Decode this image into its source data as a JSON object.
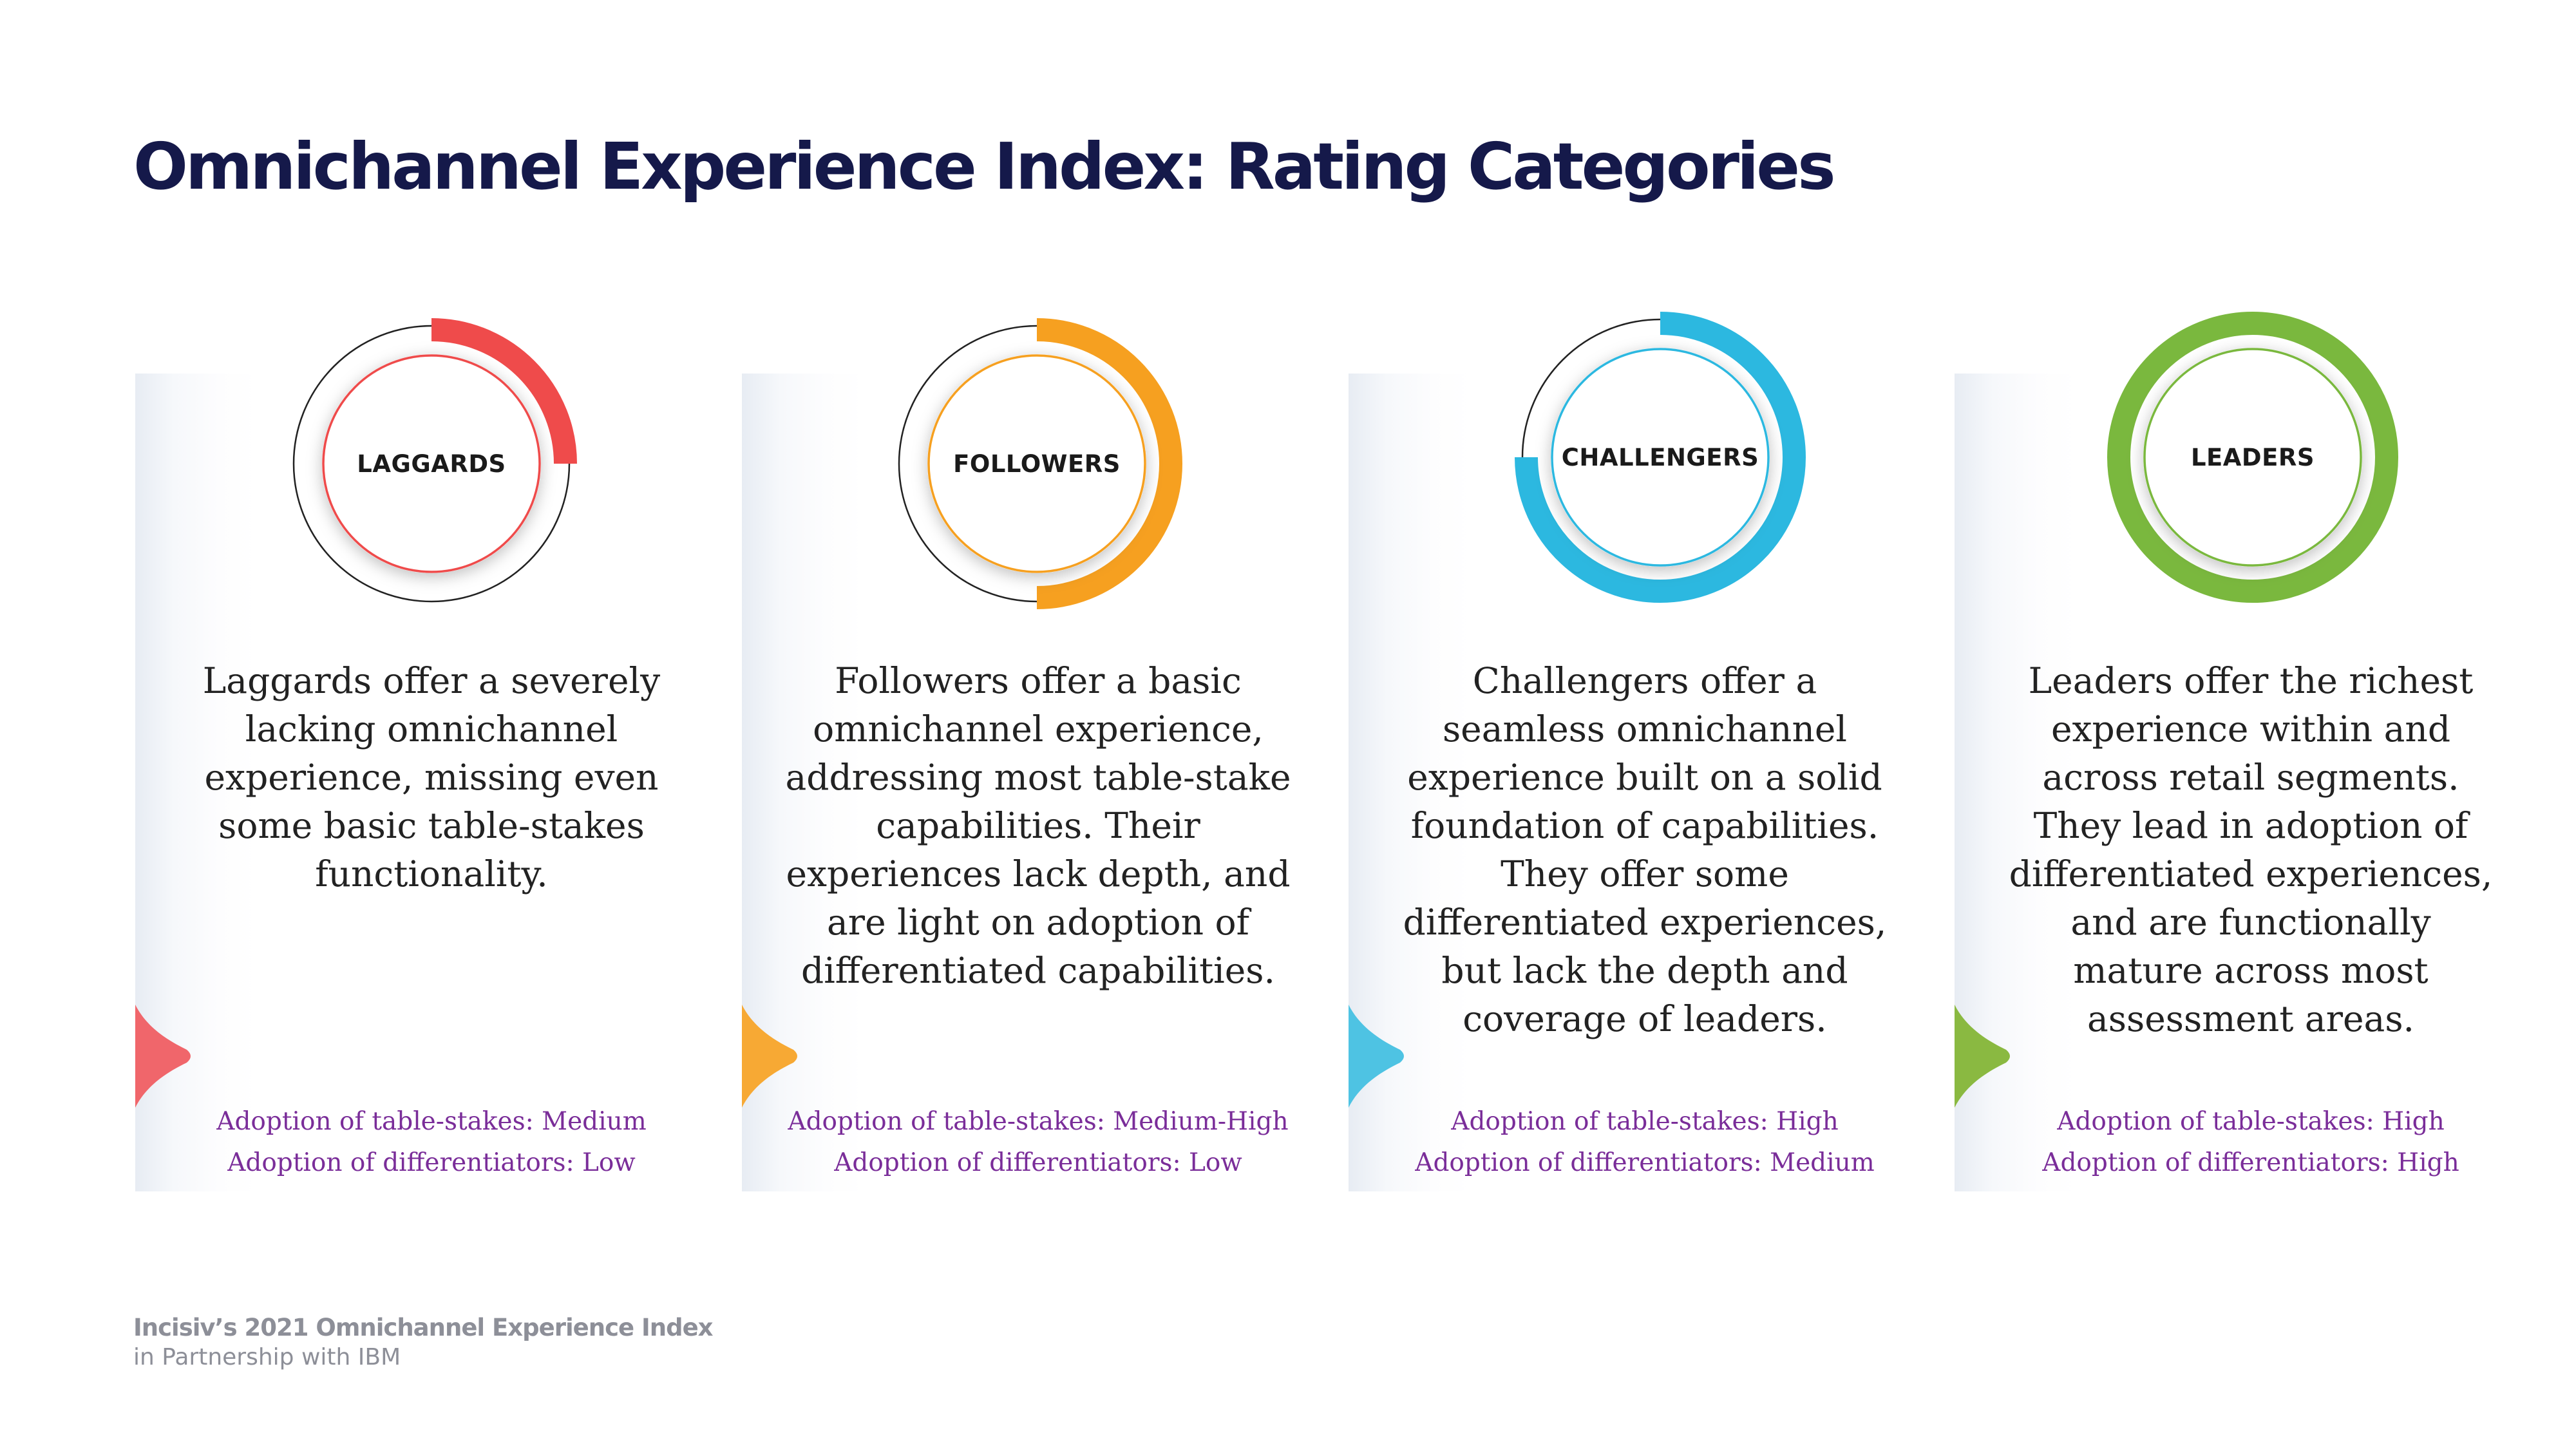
{
  "title": "Omnichannel Experience Index: Rating Categories",
  "categories": [
    {
      "label": "LAGGARDS",
      "color": "#ef4b4b",
      "arrow_color": "#f0666b",
      "ring_fill_fraction": 0.25,
      "description": [
        "Laggards offer a severely",
        "lacking omnichannel",
        "experience, missing even",
        "some basic table-stakes",
        "functionality."
      ],
      "adoption_table_stakes": "Adoption of table-stakes: Medium",
      "adoption_differentiators": "Adoption of differentiators: Low"
    },
    {
      "label": "FOLLOWERS",
      "color": "#f6a020",
      "arrow_color": "#f7a934",
      "ring_fill_fraction": 0.5,
      "description": [
        "Followers offer a basic",
        "omnichannel experience,",
        "addressing most table-stake",
        "capabilities. Their",
        "experiences lack  depth, and",
        "are light on adoption of",
        "differentiated capabilities."
      ],
      "adoption_table_stakes": "Adoption of table-stakes: Medium-High",
      "adoption_differentiators": "Adoption of differentiators: Low"
    },
    {
      "label": "CHALLENGERS",
      "color": "#2cb8e0",
      "arrow_color": "#4ec3e3",
      "ring_fill_fraction": 0.75,
      "description": [
        "Challengers offer a",
        "seamless omnichannel",
        "experience built on a solid",
        "foundation of capabilities.",
        "They offer some",
        "differentiated experiences,",
        "but lack the depth and",
        "coverage of leaders."
      ],
      "adoption_table_stakes": "Adoption of table-stakes: High",
      "adoption_differentiators": "Adoption of differentiators: Medium"
    },
    {
      "label": "LEADERS",
      "color": "#7ab83e",
      "arrow_color": "#8ab941",
      "ring_fill_fraction": 1.0,
      "description": [
        "Leaders offer the richest",
        "experience within and",
        "across retail segments.",
        "They lead in adoption of",
        "differentiated experiences,",
        "and are functionally",
        "mature across most",
        "assessment areas."
      ],
      "adoption_table_stakes": "Adoption of table-stakes: High",
      "adoption_differentiators": "Adoption of differentiators: High"
    }
  ],
  "footer": {
    "line1": "Incisiv’s 2021 Omnichannel Experience Index",
    "line2": "in Partnership with IBM"
  }
}
